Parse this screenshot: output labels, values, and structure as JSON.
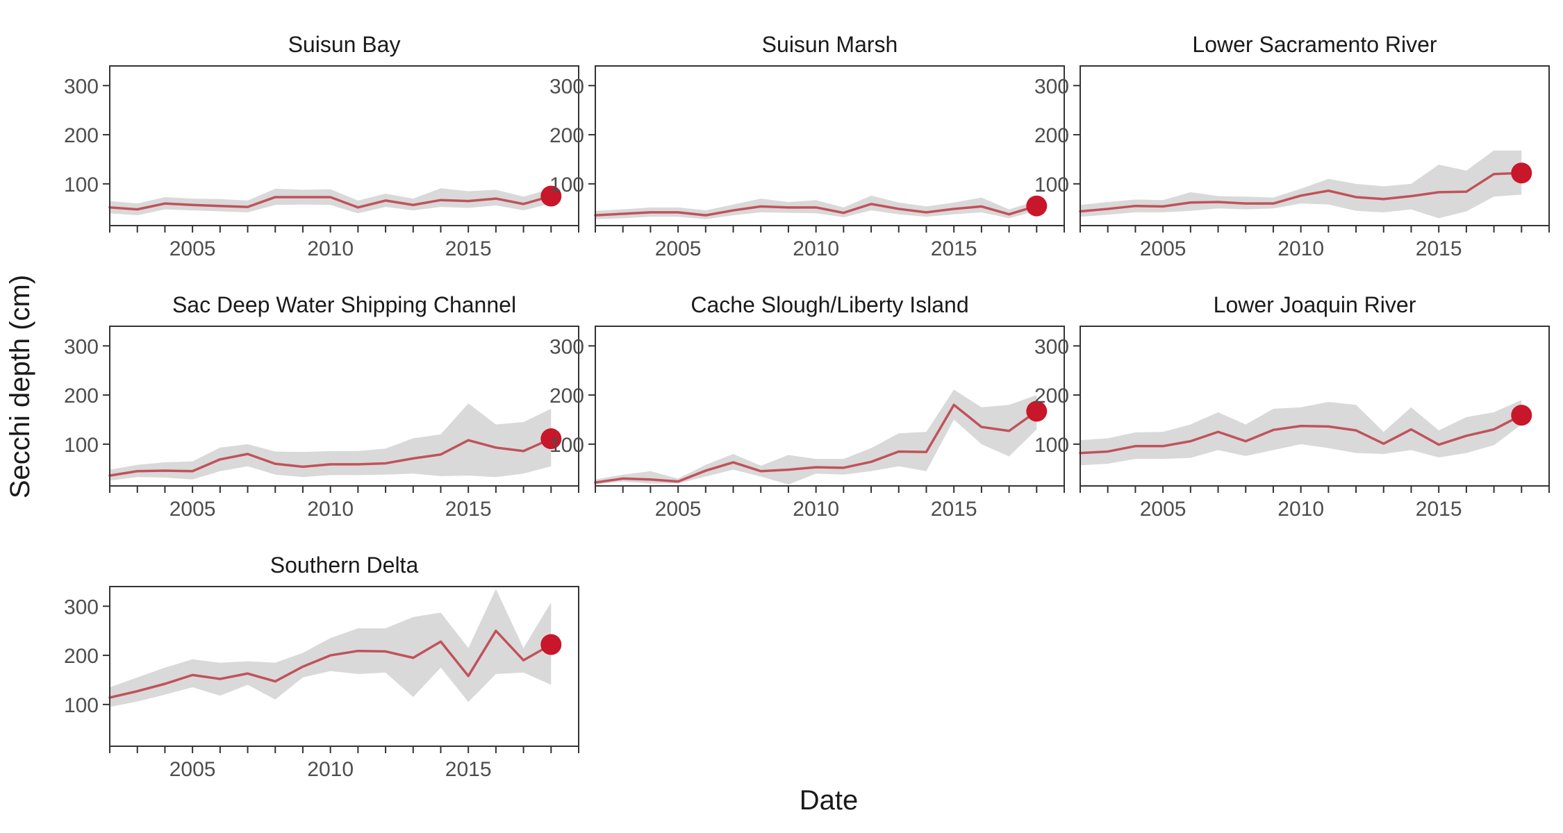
{
  "figure": {
    "xlabel": "Date",
    "ylabel": "Secchi depth (cm)"
  },
  "colors": {
    "line": "#c0525b",
    "point": "#c8162b",
    "ribbon": "#d9d9d9",
    "axis": "#333333",
    "tick_text": "#4d4d4d",
    "title_text": "#1a1a1a"
  },
  "chart_data": [
    {
      "type": "line",
      "title": "Suisun Bay",
      "x": [
        2002,
        2003,
        2004,
        2005,
        2006,
        2007,
        2008,
        2009,
        2010,
        2011,
        2012,
        2013,
        2014,
        2015,
        2016,
        2017,
        2018
      ],
      "xticks": [
        2005,
        2010,
        2015
      ],
      "xlim": [
        2002,
        2019
      ],
      "yticks": [
        100,
        200,
        300
      ],
      "ylim": [
        15,
        340
      ],
      "series": [
        {
          "values": [
            52,
            48,
            60,
            57,
            55,
            53,
            73,
            73,
            73,
            52,
            66,
            57,
            67,
            65,
            70,
            59,
            75
          ],
          "lower": [
            40,
            36,
            48,
            46,
            44,
            42,
            57,
            58,
            57,
            40,
            53,
            46,
            53,
            51,
            56,
            46,
            60
          ],
          "upper": [
            65,
            60,
            73,
            70,
            69,
            66,
            90,
            88,
            89,
            66,
            80,
            70,
            91,
            85,
            88,
            74,
            90
          ],
          "latest_x": 2018,
          "latest_value": 75
        }
      ]
    },
    {
      "type": "line",
      "title": "Suisun Marsh",
      "x": [
        2002,
        2003,
        2004,
        2005,
        2006,
        2007,
        2008,
        2009,
        2010,
        2011,
        2012,
        2013,
        2014,
        2015,
        2016,
        2017,
        2018
      ],
      "xticks": [
        2005,
        2010,
        2015
      ],
      "xlim": [
        2002,
        2019
      ],
      "yticks": [
        100,
        200,
        300
      ],
      "ylim": [
        15,
        340
      ],
      "series": [
        {
          "values": [
            36,
            39,
            42,
            42,
            36,
            46,
            54,
            52,
            52,
            41,
            59,
            49,
            42,
            49,
            54,
            38,
            55
          ],
          "lower": [
            28,
            30,
            33,
            33,
            28,
            36,
            42,
            41,
            40,
            32,
            46,
            38,
            33,
            38,
            42,
            30,
            45
          ],
          "upper": [
            45,
            48,
            52,
            52,
            46,
            58,
            70,
            63,
            67,
            52,
            76,
            62,
            54,
            62,
            72,
            48,
            65
          ],
          "latest_x": 2018,
          "latest_value": 55
        }
      ]
    },
    {
      "type": "line",
      "title": "Lower Sacramento River",
      "x": [
        2002,
        2003,
        2004,
        2005,
        2006,
        2007,
        2008,
        2009,
        2010,
        2011,
        2012,
        2013,
        2014,
        2015,
        2016,
        2017,
        2018
      ],
      "xticks": [
        2005,
        2010,
        2015
      ],
      "xlim": [
        2002,
        2019
      ],
      "yticks": [
        100,
        200,
        300
      ],
      "ylim": [
        15,
        340
      ],
      "series": [
        {
          "values": [
            44,
            49,
            55,
            54,
            62,
            63,
            60,
            60,
            76,
            86,
            73,
            69,
            75,
            83,
            84,
            120,
            122
          ],
          "lower": [
            33,
            37,
            42,
            42,
            45,
            50,
            48,
            50,
            60,
            58,
            45,
            42,
            48,
            30,
            44,
            74,
            78
          ],
          "upper": [
            57,
            63,
            68,
            67,
            83,
            75,
            74,
            72,
            90,
            110,
            100,
            95,
            100,
            139,
            127,
            168,
            168
          ],
          "latest_x": 2018,
          "latest_value": 122
        }
      ]
    },
    {
      "type": "line",
      "title": "Sac Deep Water Shipping Channel",
      "x": [
        2002,
        2003,
        2004,
        2005,
        2006,
        2007,
        2008,
        2009,
        2010,
        2011,
        2012,
        2013,
        2014,
        2015,
        2016,
        2017,
        2018
      ],
      "xticks": [
        2005,
        2010,
        2015
      ],
      "xlim": [
        2002,
        2019
      ],
      "yticks": [
        100,
        200,
        300
      ],
      "ylim": [
        15,
        340
      ],
      "series": [
        {
          "values": [
            36,
            45,
            46,
            45,
            69,
            80,
            60,
            54,
            59,
            59,
            61,
            71,
            79,
            108,
            93,
            86,
            111
          ],
          "lower": [
            26,
            33,
            32,
            28,
            45,
            55,
            38,
            33,
            37,
            37,
            38,
            40,
            35,
            36,
            33,
            40,
            55
          ],
          "upper": [
            48,
            58,
            63,
            65,
            93,
            100,
            85,
            84,
            86,
            86,
            91,
            112,
            120,
            183,
            140,
            145,
            172
          ],
          "latest_x": 2018,
          "latest_value": 111
        }
      ]
    },
    {
      "type": "line",
      "title": "Cache Slough/Liberty Island",
      "x": [
        2002,
        2003,
        2004,
        2005,
        2006,
        2007,
        2008,
        2009,
        2010,
        2011,
        2012,
        2013,
        2014,
        2015,
        2016,
        2017,
        2018
      ],
      "xticks": [
        2005,
        2010,
        2015
      ],
      "xlim": [
        2002,
        2019
      ],
      "yticks": [
        100,
        200,
        300
      ],
      "ylim": [
        15,
        340
      ],
      "series": [
        {
          "values": [
            22,
            30,
            28,
            24,
            46,
            63,
            45,
            48,
            53,
            52,
            64,
            85,
            84,
            180,
            135,
            127,
            167
          ],
          "lower": [
            18,
            24,
            20,
            20,
            34,
            48,
            34,
            18,
            40,
            38,
            45,
            55,
            45,
            150,
            100,
            75,
            130
          ],
          "upper": [
            28,
            38,
            45,
            30,
            58,
            80,
            56,
            78,
            70,
            70,
            92,
            122,
            125,
            211,
            175,
            180,
            200
          ],
          "latest_x": 2018,
          "latest_value": 167
        }
      ]
    },
    {
      "type": "line",
      "title": "Lower Joaquin River",
      "x": [
        2002,
        2003,
        2004,
        2005,
        2006,
        2007,
        2008,
        2009,
        2010,
        2011,
        2012,
        2013,
        2014,
        2015,
        2016,
        2017,
        2018
      ],
      "xticks": [
        2005,
        2010,
        2015
      ],
      "xlim": [
        2002,
        2019
      ],
      "yticks": [
        100,
        200,
        300
      ],
      "ylim": [
        15,
        340
      ],
      "series": [
        {
          "values": [
            82,
            85,
            96,
            96,
            106,
            125,
            106,
            129,
            137,
            136,
            128,
            101,
            130,
            99,
            117,
            130,
            159
          ],
          "lower": [
            57,
            60,
            70,
            70,
            72,
            88,
            76,
            88,
            100,
            92,
            82,
            80,
            88,
            73,
            82,
            98,
            140
          ],
          "upper": [
            108,
            112,
            124,
            125,
            140,
            165,
            140,
            172,
            175,
            186,
            180,
            125,
            175,
            128,
            155,
            165,
            190
          ],
          "latest_x": 2018,
          "latest_value": 159
        }
      ]
    },
    {
      "type": "line",
      "title": "Southern Delta",
      "x": [
        2002,
        2003,
        2004,
        2005,
        2006,
        2007,
        2008,
        2009,
        2010,
        2011,
        2012,
        2013,
        2014,
        2015,
        2016,
        2017,
        2018
      ],
      "xticks": [
        2005,
        2010,
        2015
      ],
      "xlim": [
        2002,
        2019
      ],
      "yticks": [
        100,
        200,
        300
      ],
      "ylim": [
        15,
        340
      ],
      "series": [
        {
          "values": [
            114,
            127,
            142,
            160,
            152,
            163,
            147,
            177,
            200,
            209,
            208,
            195,
            228,
            158,
            250,
            190,
            222
          ],
          "lower": [
            95,
            106,
            120,
            135,
            118,
            140,
            110,
            155,
            168,
            162,
            165,
            115,
            175,
            105,
            162,
            165,
            140
          ],
          "upper": [
            135,
            155,
            175,
            192,
            185,
            188,
            185,
            205,
            235,
            255,
            255,
            278,
            287,
            215,
            335,
            215,
            308
          ],
          "latest_x": 2018,
          "latest_value": 222
        }
      ]
    }
  ]
}
